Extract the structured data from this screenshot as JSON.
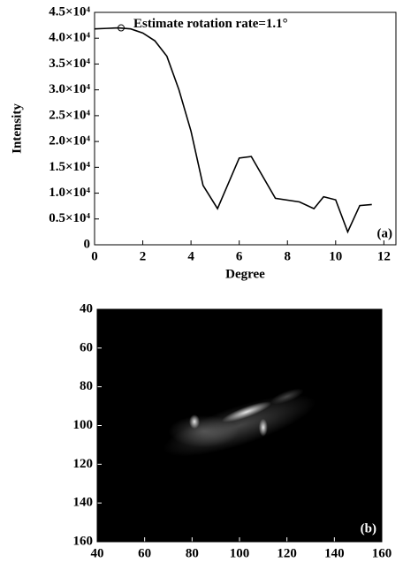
{
  "chart_data": [
    {
      "type": "line",
      "xlabel": "Degree",
      "ylabel": "Intensity",
      "panel_label": "(a)",
      "annotation": "Estimate rotation rate=1.1°",
      "marker": {
        "x": 1.1,
        "y": 42000
      },
      "x": [
        0,
        0.5,
        1,
        1.5,
        2,
        2.5,
        3,
        3.5,
        4,
        4.5,
        5.1,
        6,
        6.5,
        7.5,
        8.5,
        9.1,
        9.5,
        10,
        10.5,
        11,
        11.5
      ],
      "series": [
        {
          "color": "#000000",
          "values": [
            41800,
            41900,
            42000,
            41800,
            41000,
            39500,
            36500,
            30000,
            22000,
            11500,
            7000,
            16800,
            17100,
            9000,
            8300,
            7000,
            9300,
            8700,
            2500,
            7600,
            7800
          ]
        }
      ],
      "xlim": [
        0,
        12.5
      ],
      "xticks": [
        0,
        2,
        4,
        6,
        8,
        10,
        12
      ],
      "ylim": [
        0,
        45000
      ],
      "yticks": [
        0,
        {
          "value": 5000,
          "label": "0.5×10⁴"
        },
        {
          "value": 10000,
          "label": "1.0×10⁴"
        },
        {
          "value": 15000,
          "label": "1.5×10⁴"
        },
        {
          "value": 20000,
          "label": "2.0×10⁴"
        },
        {
          "value": 25000,
          "label": "2.5×10⁴"
        },
        {
          "value": 30000,
          "label": "3.0×10⁴"
        },
        {
          "value": 35000,
          "label": "3.5×10⁴"
        },
        {
          "value": 40000,
          "label": "4.0×10⁴"
        },
        {
          "value": 45000,
          "label": "4.5×10⁴"
        }
      ]
    },
    {
      "type": "image",
      "panel_label": "(b)",
      "y_reversed": true,
      "xlim": [
        40,
        160
      ],
      "xticks": [
        40,
        60,
        80,
        100,
        120,
        140,
        160
      ],
      "ylim": [
        40,
        160
      ],
      "yticks": [
        40,
        60,
        80,
        100,
        120,
        140,
        160
      ]
    }
  ]
}
